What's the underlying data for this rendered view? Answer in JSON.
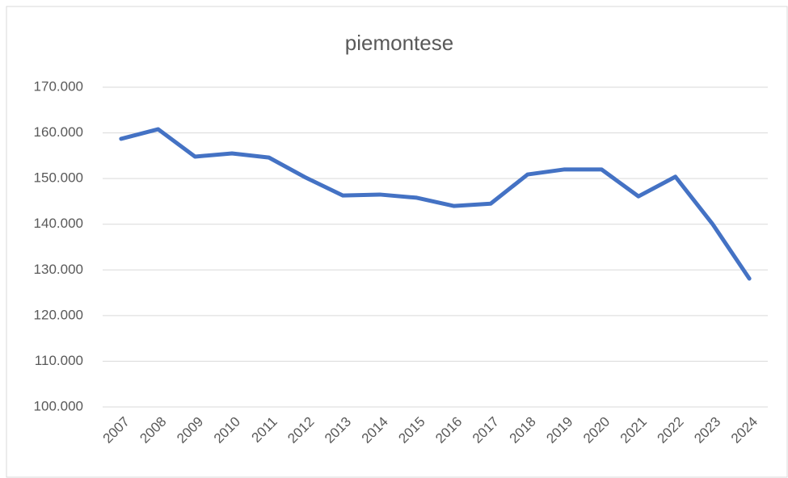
{
  "chart_data": {
    "type": "line",
    "title": "piemontese",
    "categories": [
      "2007",
      "2008",
      "2009",
      "2010",
      "2011",
      "2012",
      "2013",
      "2014",
      "2015",
      "2016",
      "2017",
      "2018",
      "2019",
      "2020",
      "2021",
      "2022",
      "2023",
      "2024"
    ],
    "series": [
      {
        "name": "piemontese",
        "color": "#4472c4",
        "values": [
          158700,
          160800,
          154800,
          155500,
          154600,
          150200,
          146300,
          146500,
          145800,
          144000,
          144500,
          150900,
          152000,
          152000,
          146100,
          150400,
          140100,
          128100
        ]
      }
    ],
    "ylim": [
      100000,
      170000
    ],
    "yticks": [
      {
        "value": 100000,
        "label": "100.000"
      },
      {
        "value": 110000,
        "label": "110.000"
      },
      {
        "value": 120000,
        "label": "120.000"
      },
      {
        "value": 130000,
        "label": "130.000"
      },
      {
        "value": 140000,
        "label": "140.000"
      },
      {
        "value": 150000,
        "label": "150.000"
      },
      {
        "value": 160000,
        "label": "160.000"
      },
      {
        "value": 170000,
        "label": "170.000"
      }
    ],
    "grid": true
  }
}
